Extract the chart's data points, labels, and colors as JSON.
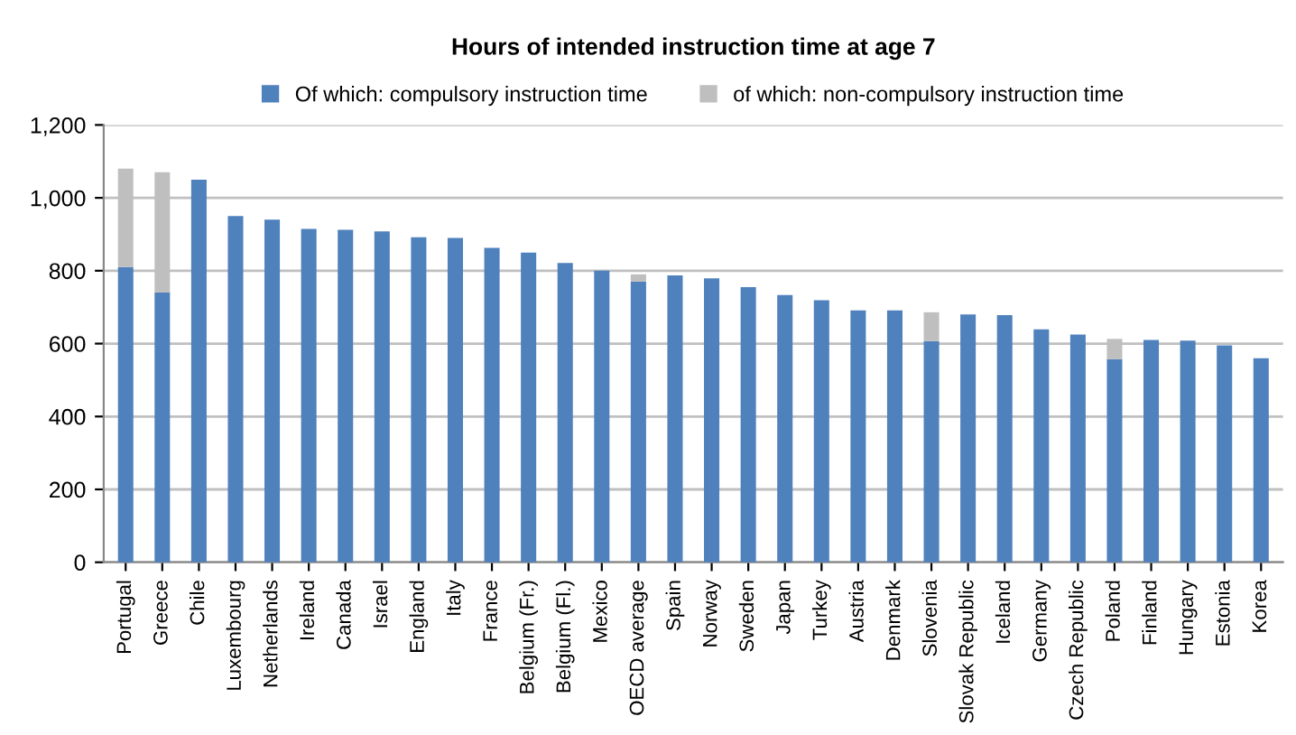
{
  "chart_data": {
    "type": "bar",
    "title": "Hours of intended instruction time at age 7",
    "categories": [
      "Portugal",
      "Greece",
      "Chile",
      "Luxembourg",
      "Netherlands",
      "Ireland",
      "Canada",
      "Israel",
      "England",
      "Italy",
      "France",
      "Belgium (Fr.)",
      "Belgium (Fl.)",
      "Mexico",
      "OECD average",
      "Spain",
      "Norway",
      "Sweden",
      "Japan",
      "Turkey",
      "Austria",
      "Denmark",
      "Slovenia",
      "Slovak Republic",
      "Iceland",
      "Germany",
      "Czech Republic",
      "Poland",
      "Finland",
      "Hungary",
      "Estonia",
      "Korea"
    ],
    "stacked": true,
    "series": [
      {
        "name": "Of which: compulsory instruction time",
        "color": "#4f81bd",
        "values": [
          810,
          740,
          1050,
          950,
          940,
          915,
          912,
          908,
          892,
          890,
          863,
          850,
          821,
          800,
          770,
          787,
          779,
          755,
          733,
          719,
          691,
          691,
          607,
          680,
          678,
          639,
          625,
          557,
          610,
          608,
          595,
          560
        ]
      },
      {
        "name": "of which: non-compulsory instruction time",
        "color": "#bfbfbf",
        "values": [
          270,
          330,
          0,
          0,
          0,
          0,
          0,
          0,
          0,
          0,
          0,
          0,
          0,
          0,
          20,
          0,
          0,
          0,
          0,
          0,
          0,
          0,
          79,
          0,
          0,
          0,
          0,
          56,
          0,
          0,
          0,
          0
        ]
      }
    ],
    "ylim": [
      0,
      1200
    ],
    "yticks": [
      {
        "value": 0,
        "label": "0"
      },
      {
        "value": 200,
        "label": "200"
      },
      {
        "value": 400,
        "label": "400"
      },
      {
        "value": 600,
        "label": "600"
      },
      {
        "value": 800,
        "label": "800"
      },
      {
        "value": 1000,
        "label": "1,000"
      },
      {
        "value": 1200,
        "label": "1,200"
      }
    ],
    "grid": "y",
    "legend": "top"
  }
}
